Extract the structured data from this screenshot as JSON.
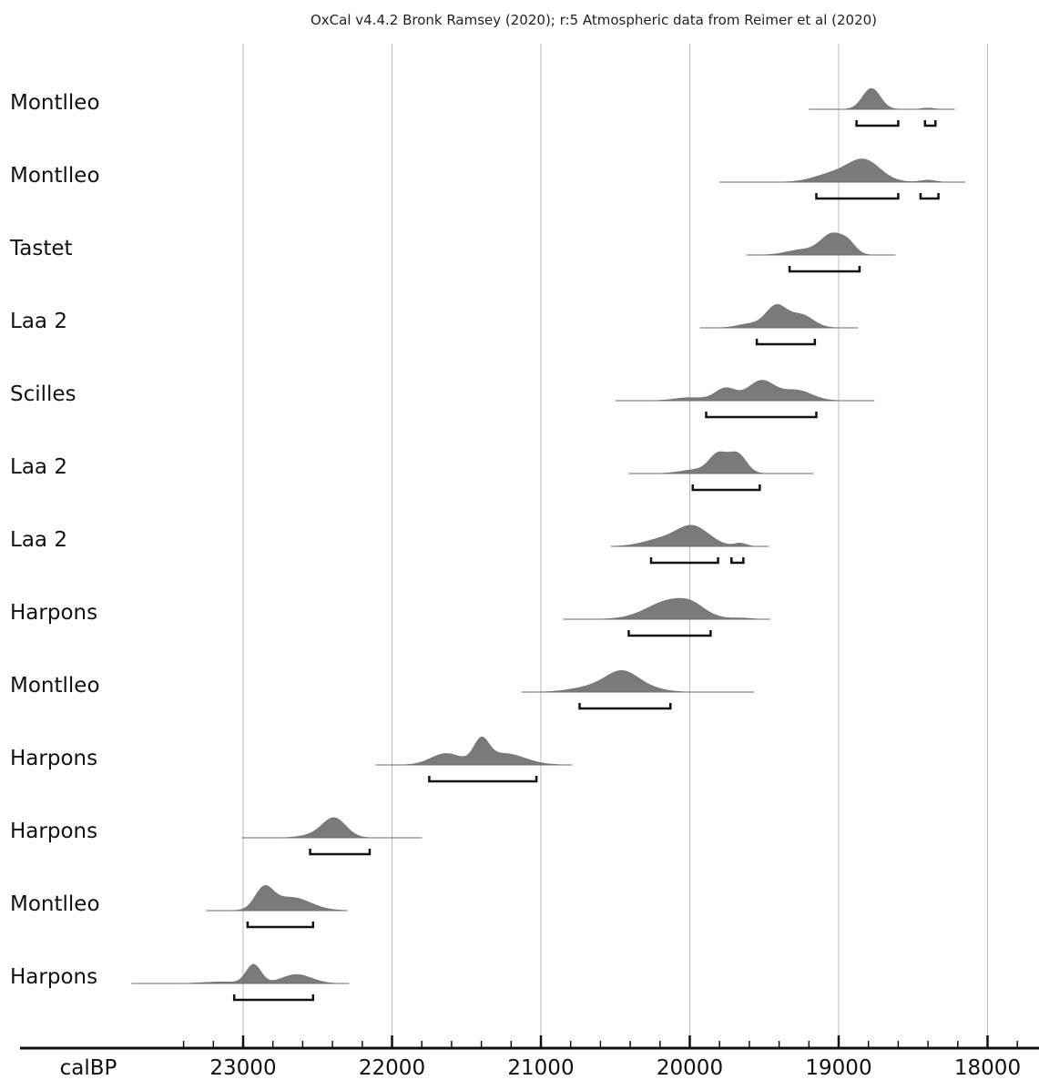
{
  "chart_data": {
    "type": "oxcal-multiplot",
    "title": "OxCal v4.4.2 Bronk Ramsey (2020); r:5 Atmospheric data from Reimer et al (2020)",
    "xlabel": "calBP",
    "x_reversed": true,
    "xlim": [
      23500,
      17700
    ],
    "x_ticks_major": [
      23000,
      22000,
      21000,
      20000,
      19000,
      18000
    ],
    "x_tick_labels": [
      "23000",
      "22000",
      "21000",
      "20000",
      "19000",
      "18000"
    ],
    "minor_tick_step": 200,
    "grid": true,
    "colors": {
      "distribution": "#7a7a7a",
      "grid": "#bbbbbb",
      "axis": "#111111",
      "range": "#111111"
    },
    "series": [
      {
        "name": "Montlleo",
        "range_start": 19200,
        "range_end": 18220,
        "peaks": [
          [
            18780,
            0.82,
            60
          ],
          [
            18400,
            0.05,
            40
          ]
        ],
        "hpd_ranges": [
          [
            18880,
            18600
          ],
          [
            18420,
            18350
          ]
        ]
      },
      {
        "name": "Montlleo",
        "range_start": 19800,
        "range_end": 18150,
        "peaks": [
          [
            18830,
            0.85,
            110
          ],
          [
            19050,
            0.3,
            120
          ],
          [
            18400,
            0.08,
            50
          ]
        ],
        "hpd_ranges": [
          [
            19150,
            18600
          ],
          [
            18450,
            18330
          ]
        ]
      },
      {
        "name": "Tastet",
        "range_start": 19620,
        "range_end": 18620,
        "peaks": [
          [
            19040,
            0.82,
            80
          ],
          [
            19250,
            0.2,
            100
          ],
          [
            18930,
            0.3,
            50
          ]
        ],
        "hpd_ranges": [
          [
            19330,
            18860
          ]
        ]
      },
      {
        "name": "Laa 2",
        "range_start": 19930,
        "range_end": 18870,
        "peaks": [
          [
            19420,
            0.85,
            70
          ],
          [
            19250,
            0.5,
            80
          ],
          [
            19600,
            0.15,
            80
          ]
        ],
        "hpd_ranges": [
          [
            19550,
            19160
          ]
        ]
      },
      {
        "name": "Scilles",
        "range_start": 20500,
        "range_end": 18760,
        "peaks": [
          [
            19760,
            0.48,
            70
          ],
          [
            19520,
            0.78,
            90
          ],
          [
            19280,
            0.4,
            100
          ],
          [
            20000,
            0.12,
            100
          ]
        ],
        "hpd_ranges": [
          [
            19890,
            19150
          ]
        ]
      },
      {
        "name": "Laa 2",
        "range_start": 20410,
        "range_end": 19170,
        "peaks": [
          [
            19810,
            0.72,
            60
          ],
          [
            19680,
            0.76,
            60
          ],
          [
            19960,
            0.15,
            100
          ]
        ],
        "hpd_ranges": [
          [
            19980,
            19530
          ]
        ]
      },
      {
        "name": "Laa 2",
        "range_start": 20530,
        "range_end": 19470,
        "peaks": [
          [
            19980,
            0.78,
            110
          ],
          [
            20200,
            0.25,
            120
          ],
          [
            19660,
            0.12,
            40
          ]
        ],
        "hpd_ranges": [
          [
            20260,
            19810
          ],
          [
            19720,
            19640
          ]
        ]
      },
      {
        "name": "Harpons",
        "range_start": 20850,
        "range_end": 19460,
        "peaks": [
          [
            20120,
            0.75,
            160
          ],
          [
            19980,
            0.2,
            80
          ],
          [
            19650,
            0.04,
            60
          ]
        ],
        "hpd_ranges": [
          [
            20410,
            19860
          ]
        ]
      },
      {
        "name": "Montlleo",
        "range_start": 21130,
        "range_end": 19570,
        "peaks": [
          [
            20450,
            0.76,
            110
          ],
          [
            20650,
            0.2,
            140
          ],
          [
            20250,
            0.1,
            100
          ]
        ],
        "hpd_ranges": [
          [
            20740,
            20130
          ]
        ]
      },
      {
        "name": "Harpons",
        "range_start": 22110,
        "range_end": 20790,
        "peaks": [
          [
            21640,
            0.44,
            100
          ],
          [
            21400,
            0.82,
            50
          ],
          [
            21250,
            0.45,
            140
          ]
        ],
        "hpd_ranges": [
          [
            21750,
            21030
          ]
        ]
      },
      {
        "name": "Harpons",
        "range_start": 23010,
        "range_end": 21800,
        "peaks": [
          [
            22390,
            0.78,
            80
          ],
          [
            22550,
            0.08,
            80
          ]
        ],
        "hpd_ranges": [
          [
            22550,
            22150
          ]
        ]
      },
      {
        "name": "Montlleo",
        "range_start": 23250,
        "range_end": 22300,
        "peaks": [
          [
            22860,
            0.78,
            60
          ],
          [
            22680,
            0.52,
            130
          ]
        ],
        "hpd_ranges": [
          [
            22970,
            22530
          ]
        ]
      },
      {
        "name": "Harpons",
        "range_start": 23750,
        "range_end": 22290,
        "peaks": [
          [
            22930,
            0.74,
            50
          ],
          [
            22640,
            0.35,
            100
          ],
          [
            23150,
            0.06,
            120
          ]
        ],
        "hpd_ranges": [
          [
            23060,
            22530
          ]
        ]
      }
    ]
  }
}
